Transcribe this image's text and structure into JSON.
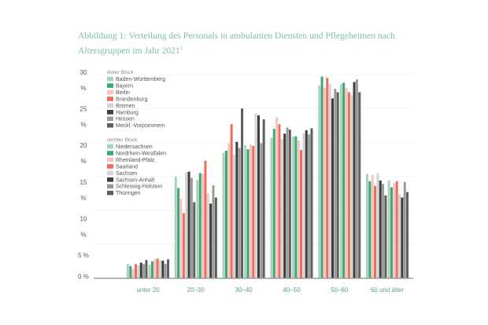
{
  "figure": {
    "title_line1": "Abbildung 1: Verteilung des Personals in ambulanten Diensten und Pflegeheimen nach",
    "title_line2": "Altersgruppen im Jahr 2021",
    "title_footnote": "2"
  },
  "legend": {
    "left_block_title": "linker Block",
    "right_block_title": "rechter Block"
  },
  "chart_data": {
    "type": "bar",
    "title": "Abbildung 1: Verteilung des Personals in ambulanten Diensten und Pflegeheimen nach Altersgruppen im Jahr 2021",
    "xlabel": "",
    "ylabel": "",
    "ylim": [
      0,
      30
    ],
    "yticks": [
      0,
      5,
      10,
      15,
      20,
      25,
      30
    ],
    "ytick_labels": [
      {
        "number": "0",
        "unit": "%"
      },
      {
        "number": "5",
        "unit": "%"
      },
      {
        "number": "10",
        "unit": "%"
      },
      {
        "number": "15",
        "unit": "%"
      },
      {
        "number": "20",
        "unit": "%"
      },
      {
        "number": "25",
        "unit": "%"
      },
      {
        "number": "30",
        "unit": "%"
      }
    ],
    "grid": true,
    "legend_position": "top-left",
    "categories": [
      "unter 20",
      "20–30",
      "30–40",
      "40–50",
      "50–60",
      "60 und älter"
    ],
    "series": [
      {
        "name": "Baden-Württemberg",
        "block": "left",
        "color": "#a8d5b9",
        "values": [
          2.1,
          15.0,
          18.5,
          20.7,
          28.4,
          15.4
        ]
      },
      {
        "name": "Bayern",
        "block": "left",
        "color": "#3fa578",
        "values": [
          1.8,
          13.3,
          18.8,
          22.0,
          29.7,
          14.3
        ]
      },
      {
        "name": "Berlin",
        "block": "left",
        "color": "#f8c3bb",
        "values": [
          1.4,
          11.7,
          19.9,
          23.7,
          28.1,
          15.2
        ]
      },
      {
        "name": "Brandenburg",
        "block": "left",
        "color": "#ec6d5e",
        "values": [
          2.1,
          9.6,
          22.7,
          22.7,
          29.5,
          13.6
        ]
      },
      {
        "name": "Bremen",
        "block": "left",
        "color": "#d3d3d3",
        "values": [
          1.9,
          15.6,
          18.2,
          20.5,
          28.6,
          15.5
        ]
      },
      {
        "name": "Hamburg",
        "block": "left",
        "color": "#3d3d3d",
        "values": [
          2.3,
          15.7,
          20.1,
          21.3,
          26.5,
          14.4
        ]
      },
      {
        "name": "Hessen",
        "block": "left",
        "color": "#9b9b9b",
        "values": [
          2.1,
          14.8,
          19.2,
          22.2,
          27.9,
          13.9
        ]
      },
      {
        "name": "Meckl.-Vorpommern",
        "block": "left",
        "color": "#5f5f5f",
        "values": [
          2.7,
          11.2,
          25.0,
          21.9,
          27.4,
          12.2
        ]
      },
      {
        "name": "Niedersachsen",
        "block": "right",
        "color": "#a8d5b9",
        "values": [
          2.0,
          14.5,
          19.6,
          20.9,
          28.6,
          14.4
        ]
      },
      {
        "name": "Nordrhein-Westfalen",
        "block": "right",
        "color": "#3fa578",
        "values": [
          2.5,
          15.5,
          19.0,
          20.9,
          28.8,
          13.4
        ]
      },
      {
        "name": "Rheinland-Pfalz",
        "block": "right",
        "color": "#f8c3bb",
        "values": [
          2.8,
          15.4,
          19.7,
          20.3,
          28.0,
          14.0
        ]
      },
      {
        "name": "Saarland",
        "block": "right",
        "color": "#ec6d5e",
        "values": [
          2.9,
          17.3,
          19.5,
          18.9,
          27.4,
          14.3
        ]
      },
      {
        "name": "Sachsen",
        "block": "right",
        "color": "#d3d3d3",
        "values": [
          2.6,
          12.5,
          24.3,
          21.4,
          27.0,
          12.4
        ]
      },
      {
        "name": "Sachsen-Anhalt",
        "block": "right",
        "color": "#3d3d3d",
        "values": [
          2.6,
          11.0,
          24.0,
          21.8,
          28.9,
          11.9
        ]
      },
      {
        "name": "Schleswig-Holstein",
        "block": "right",
        "color": "#9b9b9b",
        "values": [
          2.1,
          13.7,
          19.9,
          21.2,
          29.3,
          14.2
        ]
      },
      {
        "name": "Thüringen",
        "block": "right",
        "color": "#5f5f5f",
        "values": [
          2.8,
          11.9,
          23.4,
          22.1,
          27.4,
          12.7
        ]
      }
    ]
  }
}
